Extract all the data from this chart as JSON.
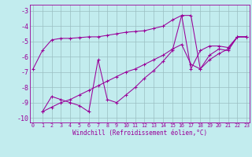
{
  "xlabel": "Windchill (Refroidissement éolien,°C)",
  "background_color": "#c2ecee",
  "grid_color": "#9abfc2",
  "line_color": "#990099",
  "xlim": [
    -0.3,
    23.3
  ],
  "ylim": [
    -10.3,
    -2.6
  ],
  "yticks": [
    -3,
    -4,
    -5,
    -6,
    -7,
    -8,
    -9,
    -10
  ],
  "xticks": [
    0,
    1,
    2,
    3,
    4,
    5,
    6,
    7,
    8,
    9,
    10,
    11,
    12,
    13,
    14,
    15,
    16,
    17,
    18,
    19,
    20,
    21,
    22,
    23
  ],
  "series": [
    {
      "x": [
        0,
        1,
        2,
        3,
        4,
        5,
        6,
        7,
        8,
        9,
        10,
        11,
        12,
        13,
        14,
        15,
        16,
        17,
        18,
        19,
        20,
        21,
        22,
        23
      ],
      "y": [
        -6.8,
        -5.6,
        -4.9,
        -4.8,
        -4.8,
        -4.75,
        -4.7,
        -4.7,
        -4.6,
        -4.5,
        -4.4,
        -4.35,
        -4.3,
        -4.15,
        -4.0,
        -3.6,
        -3.3,
        -6.8,
        -5.6,
        -5.3,
        -5.3,
        -5.4,
        -4.7,
        -4.7
      ]
    },
    {
      "x": [
        1,
        2,
        3,
        4,
        5,
        6,
        7,
        8,
        9,
        10,
        11,
        12,
        13,
        14,
        15,
        16,
        17,
        18,
        19,
        20,
        21,
        22,
        23
      ],
      "y": [
        -9.6,
        -9.3,
        -9.0,
        -8.8,
        -8.5,
        -8.2,
        -7.9,
        -7.6,
        -7.3,
        -7.0,
        -6.8,
        -6.5,
        -6.2,
        -5.9,
        -5.5,
        -5.2,
        -6.5,
        -6.8,
        -6.2,
        -5.8,
        -5.5,
        -4.7,
        -4.7
      ]
    },
    {
      "comment": "Jagged lower curve: x=1 y=-9.6, x=2 y=-8.6, x=3 y=-8.8, x=4 y=-9.0, x=5 y=-9.2, x=6 y=-9.6, x=7 y=-6.2 spike up, x=8 y=-8.8, x=9 y=-9.0, then slowly rises",
      "x": [
        1,
        2,
        3,
        4,
        5,
        6,
        7,
        8,
        9,
        10,
        11,
        12,
        13,
        14,
        15,
        16,
        17,
        18,
        19,
        20,
        21,
        22,
        23
      ],
      "y": [
        -9.6,
        -8.6,
        -8.8,
        -9.0,
        -9.2,
        -9.6,
        -6.2,
        -8.8,
        -9.0,
        -8.5,
        -8.0,
        -7.4,
        -6.9,
        -6.3,
        -5.6,
        -3.3,
        -3.3,
        -6.8,
        -5.9,
        -5.5,
        -5.6,
        -4.7,
        -4.7
      ]
    }
  ]
}
